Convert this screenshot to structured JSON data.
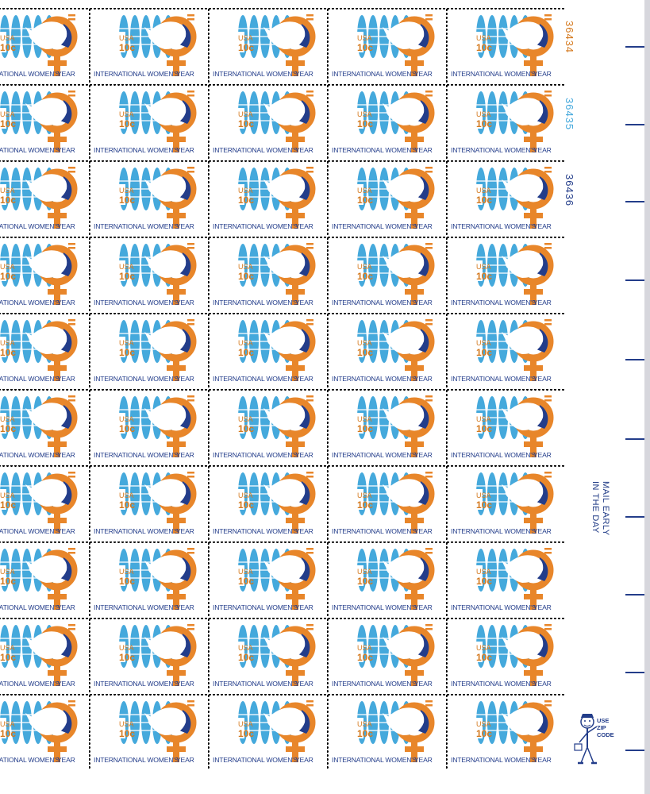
{
  "stamp": {
    "country": "USA",
    "denomination": "10c",
    "caption": "INTERNATIONAL WOMEN'S",
    "year_word": "YEAR",
    "rows": 10,
    "cols": 5,
    "colors": {
      "blue": "#45a9dc",
      "orange": "#e8862a",
      "navy": "#233d8a",
      "dove": "#ffffff"
    }
  },
  "plate_numbers": [
    {
      "text": "36434",
      "color": "#d4791e"
    },
    {
      "text": "36435",
      "color": "#45a9dc"
    },
    {
      "text": "36436",
      "color": "#233d8a"
    }
  ],
  "mail_early": {
    "line1": "MAIL EARLY",
    "line2": "IN THE DAY"
  },
  "zip_slogan": {
    "line1": "USE",
    "line2": "ZIP",
    "line3": "CODE",
    "icon": "mr-zip-icon"
  }
}
